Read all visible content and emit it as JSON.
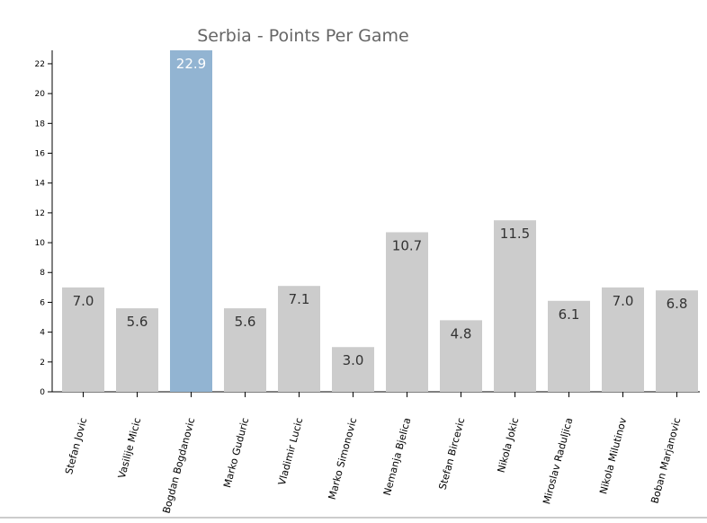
{
  "chart_data": {
    "type": "bar",
    "title": "Serbia - Points Per Game",
    "categories": [
      "Stefan Jovic",
      "Vasilije Micic",
      "Bogdan Bogdanovic",
      "Marko Guduric",
      "Vladimir Lucic",
      "Marko Simonovic",
      "Nemanja Bjelica",
      "Stefan Bircevic",
      "Nikola Jokic",
      "Miroslav Raduljica",
      "Nikola Milutinov",
      "Boban Marjanovic"
    ],
    "values": [
      7.0,
      5.6,
      22.9,
      5.6,
      7.1,
      3.0,
      10.7,
      4.8,
      11.5,
      6.1,
      7.0,
      6.8
    ],
    "value_labels": [
      "7.0",
      "5.6",
      "22.9",
      "5.6",
      "7.1",
      "3.0",
      "10.7",
      "4.8",
      "11.5",
      "6.1",
      "7.0",
      "6.8"
    ],
    "highlight_index": 2,
    "ylim": [
      0,
      22.9
    ],
    "yticks": [
      0,
      2,
      4,
      6,
      8,
      10,
      12,
      14,
      16,
      18,
      20,
      22
    ],
    "xlabel": "",
    "ylabel": "",
    "grid": false,
    "colors": {
      "bar": "#cccccc",
      "highlight": "#92b4d2",
      "value_text": "#333333",
      "highlight_text": "#ffffff"
    }
  }
}
